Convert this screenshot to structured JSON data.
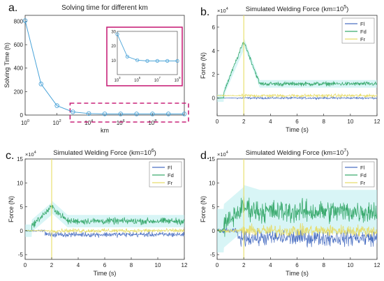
{
  "colors": {
    "Fl": "#4a6fc2",
    "Fd": "#3aaa6e",
    "Fr": "#e6dc6a",
    "line_a": "#4aa3d8",
    "inset_border": "#c8237a",
    "spike": "#e8e070",
    "cyan_haze": "#b8ecee"
  },
  "chart_data": [
    {
      "type": "line",
      "panel_label": "a.",
      "title": "Solving time for different km",
      "xlabel": "km",
      "ylabel": "Solving Time (h)",
      "xscale": "log",
      "xlim": [
        1,
        10000000000.0
      ],
      "ylim": [
        0,
        850
      ],
      "x_ticks": [
        {
          "v": 1,
          "base": "10",
          "exp": "0"
        },
        {
          "v": 100,
          "base": "10",
          "exp": "2"
        },
        {
          "v": 10000,
          "base": "10",
          "exp": "4"
        },
        {
          "v": 1000000,
          "base": "10",
          "exp": "6"
        },
        {
          "v": 100000000,
          "base": "10",
          "exp": "8"
        }
      ],
      "y_ticks": [
        {
          "v": 0,
          "label": "0"
        },
        {
          "v": 200,
          "label": "200"
        },
        {
          "v": 400,
          "label": "400"
        },
        {
          "v": 600,
          "label": "600"
        },
        {
          "v": 800,
          "label": "800"
        }
      ],
      "x": [
        1,
        10,
        100,
        1000,
        10000,
        100000,
        1000000,
        10000000,
        100000000,
        1000000000,
        10000000000
      ],
      "y": [
        805,
        265,
        80,
        27,
        13,
        10,
        9.5,
        9.5,
        9.5,
        9.5,
        9.5
      ],
      "highlight_range": [
        1000,
        10000000000
      ],
      "inset": {
        "xscale": "log",
        "xlim": [
          1000,
          1000000000.0
        ],
        "ylim": [
          0,
          30
        ],
        "x_ticks": [
          {
            "v": 1000,
            "base": "10",
            "exp": "3"
          },
          {
            "v": 100000,
            "base": "10",
            "exp": "5"
          },
          {
            "v": 10000000,
            "base": "10",
            "exp": "7"
          },
          {
            "v": 1000000000,
            "base": "10",
            "exp": "9"
          }
        ],
        "y_ticks": [
          {
            "v": 10,
            "label": "10"
          },
          {
            "v": 20,
            "label": "20"
          },
          {
            "v": 30,
            "label": "30"
          }
        ],
        "x": [
          1000,
          10000,
          100000,
          1000000,
          10000000,
          100000000,
          1000000000
        ],
        "y": [
          28,
          12.5,
          10,
          9.5,
          9.5,
          9.5,
          9.5
        ]
      }
    },
    {
      "type": "line",
      "panel_label": "b.",
      "title_text": "Simulated Welding Force (km=10",
      "title_exp": "5",
      "title_end": ")",
      "xlabel": "Time (s)",
      "ylabel": "Force (N)",
      "multiplier": "×10",
      "multiplier_exp": "4",
      "xlim": [
        0,
        12
      ],
      "ylim": [
        -1.5,
        7
      ],
      "x_ticks": [
        "0",
        "2",
        "4",
        "6",
        "8",
        "10",
        "12"
      ],
      "y_ticks": [
        {
          "v": 0,
          "label": "0"
        },
        {
          "v": 2,
          "label": "2"
        },
        {
          "v": 4,
          "label": "4"
        },
        {
          "v": 6,
          "label": "6"
        }
      ],
      "legend": [
        "Fl",
        "Fd",
        "Fr"
      ],
      "spike_time": 2.0,
      "series_shape": {
        "Fd": {
          "start": 0.5,
          "ramp_to": 2.0,
          "peak": 4.8,
          "settle": 1.2,
          "noise": 0.25
        },
        "Fr": {
          "level": 0.2,
          "noise": 0.2
        },
        "Fl": {
          "level": 0,
          "noise": 0.12
        }
      }
    },
    {
      "type": "line",
      "panel_label": "c.",
      "title_text": "Simulated Welding Force (km=10",
      "title_exp": "6",
      "title_end": ")",
      "xlabel": "Time (s)",
      "ylabel": "Force (N)",
      "multiplier": "×10",
      "multiplier_exp": "4",
      "xlim": [
        0,
        12
      ],
      "ylim": [
        -6,
        15
      ],
      "x_ticks": [
        "0",
        "2",
        "4",
        "6",
        "8",
        "10",
        "12"
      ],
      "y_ticks": [
        {
          "v": -5,
          "label": "-5"
        },
        {
          "v": 0,
          "label": "0"
        },
        {
          "v": 5,
          "label": "5"
        },
        {
          "v": 10,
          "label": "10"
        },
        {
          "v": 15,
          "label": "15"
        }
      ],
      "legend": [
        "Fl",
        "Fd",
        "Fr"
      ],
      "spike_time": 2.0,
      "series_shape": {
        "Fd": {
          "start": 1.0,
          "ramp_to": 2.0,
          "peak": 5.0,
          "settle": 2.0,
          "noise": 1.0
        },
        "Fr": {
          "level": 0,
          "noise": 0.6
        },
        "Fl": {
          "level": -0.8,
          "noise": 0.8
        }
      }
    },
    {
      "type": "line",
      "panel_label": "d.",
      "title_text": "Simulated Welding Force (km=10",
      "title_exp": "7",
      "title_end": ")",
      "xlabel": "Time (s)",
      "ylabel": "Force (N)",
      "multiplier": "×10",
      "multiplier_exp": "4",
      "xlim": [
        0,
        12
      ],
      "ylim": [
        -6,
        15
      ],
      "x_ticks": [
        "0",
        "2",
        "4",
        "6",
        "8",
        "10",
        "12"
      ],
      "y_ticks": [
        {
          "v": -5,
          "label": "-5"
        },
        {
          "v": 0,
          "label": "0"
        },
        {
          "v": 5,
          "label": "5"
        },
        {
          "v": 10,
          "label": "10"
        },
        {
          "v": 15,
          "label": "15"
        }
      ],
      "legend": [
        "Fl",
        "Fd",
        "Fr"
      ],
      "spike_time": 2.0,
      "series_shape": {
        "Fd": {
          "start": 1.0,
          "ramp_to": 2.0,
          "peak": 5.0,
          "settle": 4.0,
          "noise": 3.5
        },
        "Fr": {
          "level": 0,
          "noise": 1.8
        },
        "Fl": {
          "level": -1.5,
          "noise": 2.5
        }
      }
    }
  ]
}
